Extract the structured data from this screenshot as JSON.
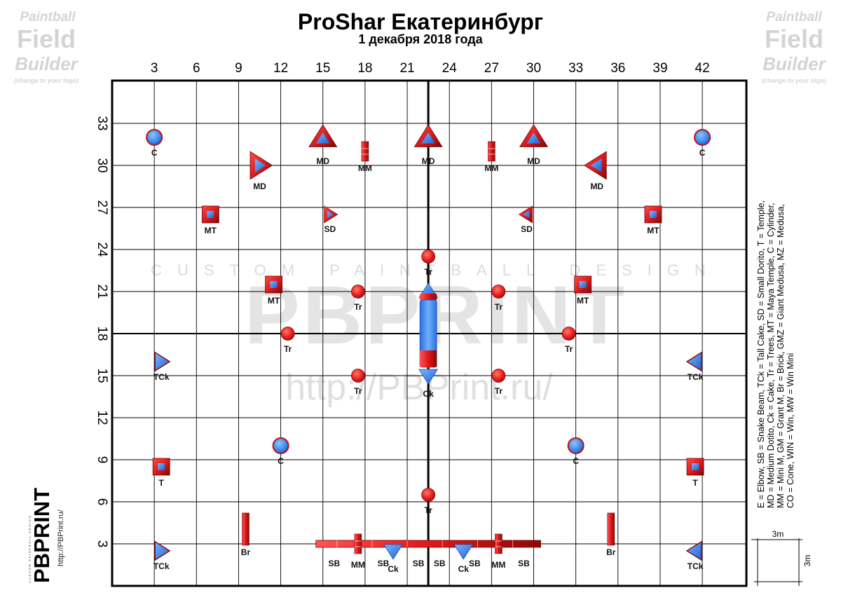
{
  "header": {
    "title": "ProShar Екатеринбург",
    "date": "1 декабря 2018 года"
  },
  "axes": {
    "x_ticks": [
      "3",
      "6",
      "9",
      "12",
      "15",
      "18",
      "21",
      "24",
      "27",
      "30",
      "33",
      "36",
      "39",
      "42"
    ],
    "y_ticks": [
      "33",
      "30",
      "27",
      "24",
      "21",
      "18",
      "15",
      "12",
      "9",
      "6",
      "3"
    ]
  },
  "logos": {
    "left_lines": [
      "Paintball",
      "Field",
      "Builder",
      "(change to your logo)"
    ],
    "right_lines": [
      "Paintball",
      "Field",
      "Builder",
      "(change to your logo)"
    ],
    "brand_name": "PBPRINT",
    "brand_url": "http://PBPrint.ru/",
    "brand_tag": "CUSTOM PAINTBALL DESIGN"
  },
  "watermark": {
    "tagline": "CUSTOM PAINTBALL DESIGN",
    "name": "PBPRINT",
    "url": "http://PBPrint.ru/"
  },
  "legend": {
    "lines": [
      "E = Elbow, SB = Snake Beam, TCk = Tall Cake, SD = Small Dorito, T = Temple,",
      "MD = Medium Dotito, Ck = Cake, Tr = Trees, MT = Maya Temple, C = Cylinder,",
      "MM = Mini M, GM = Grant M, Br = Brick, GMZ = Giant Medusa, MZ = Medusa,",
      "CO = Cone, WIN = Win, MW = Win Mini"
    ],
    "scale_x": "3m",
    "scale_y": "3m"
  },
  "colors": {
    "grid": "#000000",
    "bunker_red": "#e81f1f",
    "bunker_dark": "#8a0f0f",
    "bunker_blue": "#2f7fe6"
  },
  "bunkers": [
    {
      "type": "cyl",
      "x": 3,
      "y": 32,
      "label": "C"
    },
    {
      "type": "cyl",
      "x": 42,
      "y": 32,
      "label": "C"
    },
    {
      "type": "dorito",
      "dir": "up",
      "x": 15,
      "y": 32,
      "label": "MD"
    },
    {
      "type": "dorito",
      "dir": "up",
      "x": 22.5,
      "y": 32,
      "label": "MD"
    },
    {
      "type": "dorito",
      "dir": "up",
      "x": 30,
      "y": 32,
      "label": "MD"
    },
    {
      "type": "mm",
      "x": 18,
      "y": 31,
      "label": "MM"
    },
    {
      "type": "mm",
      "x": 27,
      "y": 31,
      "label": "MM"
    },
    {
      "type": "dorito",
      "dir": "right",
      "x": 10.5,
      "y": 30,
      "label": "MD"
    },
    {
      "type": "dorito",
      "dir": "left",
      "x": 34.5,
      "y": 30,
      "label": "MD"
    },
    {
      "type": "temple",
      "x": 7,
      "y": 26.5,
      "label": "MT"
    },
    {
      "type": "temple",
      "x": 38.5,
      "y": 26.5,
      "label": "MT"
    },
    {
      "type": "smalldor",
      "dir": "right",
      "x": 15.5,
      "y": 26.5,
      "label": "SD"
    },
    {
      "type": "smalldor",
      "dir": "left",
      "x": 29.5,
      "y": 26.5,
      "label": "SD"
    },
    {
      "type": "tree",
      "x": 22.5,
      "y": 23.5,
      "label": "Tr"
    },
    {
      "type": "temple",
      "x": 11.5,
      "y": 21.5,
      "label": "MT"
    },
    {
      "type": "temple",
      "x": 33.5,
      "y": 21.5,
      "label": "MT"
    },
    {
      "type": "tree",
      "x": 17.5,
      "y": 21,
      "label": "Tr"
    },
    {
      "type": "tree",
      "x": 27.5,
      "y": 21,
      "label": "Tr"
    },
    {
      "type": "cake",
      "dir": "up",
      "x": 22.5,
      "y": 21,
      "label": "Ck"
    },
    {
      "type": "tree",
      "x": 12.5,
      "y": 18,
      "label": "Tr"
    },
    {
      "type": "tree",
      "x": 32.5,
      "y": 18,
      "label": "Tr"
    },
    {
      "type": "tallcake",
      "dir": "right",
      "x": 3.5,
      "y": 16,
      "label": "TCk"
    },
    {
      "type": "tallcake",
      "dir": "left",
      "x": 41.5,
      "y": 16,
      "label": "TCk"
    },
    {
      "type": "tree",
      "x": 17.5,
      "y": 15,
      "label": "Tr"
    },
    {
      "type": "tree",
      "x": 27.5,
      "y": 15,
      "label": "Tr"
    },
    {
      "type": "cake",
      "dir": "down",
      "x": 22.5,
      "y": 15,
      "label": "Ck"
    },
    {
      "type": "cyl",
      "x": 12,
      "y": 10,
      "label": "C"
    },
    {
      "type": "cyl",
      "x": 33,
      "y": 10,
      "label": "C"
    },
    {
      "type": "temple",
      "x": 3.5,
      "y": 8.5,
      "label": "T"
    },
    {
      "type": "temple",
      "x": 41.5,
      "y": 8.5,
      "label": "T"
    },
    {
      "type": "tree",
      "x": 22.5,
      "y": 6.5,
      "label": "Tr"
    },
    {
      "type": "brick",
      "x": 9.5,
      "y": 4,
      "label": "Br"
    },
    {
      "type": "brick",
      "x": 35.5,
      "y": 4,
      "label": "Br"
    },
    {
      "type": "tallcake",
      "dir": "right",
      "x": 3.5,
      "y": 2.5,
      "label": "TCk"
    },
    {
      "type": "tallcake",
      "dir": "left",
      "x": 41.5,
      "y": 2.5,
      "label": "TCk"
    },
    {
      "type": "cake",
      "dir": "down",
      "x": 20,
      "y": 2.5,
      "label": "Ck"
    },
    {
      "type": "cake",
      "dir": "down",
      "x": 25,
      "y": 2.5,
      "label": "Ck"
    },
    {
      "type": "mm",
      "x": 17.5,
      "y": 3,
      "label": "MM"
    },
    {
      "type": "mm",
      "x": 27.5,
      "y": 3,
      "label": "MM"
    }
  ],
  "snake_labels": [
    {
      "x": 15.8,
      "text": "SB"
    },
    {
      "x": 19.3,
      "text": "SB"
    },
    {
      "x": 21.8,
      "text": "SB"
    },
    {
      "x": 23.3,
      "text": "SB"
    },
    {
      "x": 25.8,
      "text": "SB"
    },
    {
      "x": 29.3,
      "text": "SB"
    }
  ]
}
